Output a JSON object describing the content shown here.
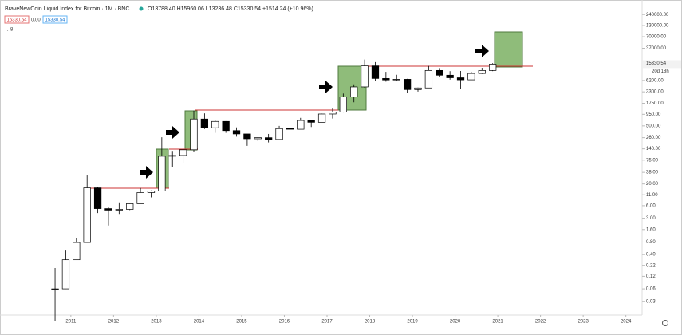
{
  "header": {
    "title": "BraveNewCoin Liquid Index for Bitcoin · 1M · BNC",
    "ohlc": "O13788.40 H15960.06 L13236.48 C15330.54 +1514.24 (+10.96%)",
    "sell": "15330.54",
    "spread": "0.00",
    "buy": "15330.54",
    "indicators": "8"
  },
  "chart_data": {
    "type": "candlestick",
    "log_scale": true,
    "grid": false,
    "up_color": "#ffffff",
    "down_color": "#000000",
    "price_label": "15330.54",
    "countdown": "20d 18h",
    "x": [
      2010.63,
      2010.88,
      2011.13,
      2011.38,
      2011.63,
      2011.88,
      2012.13,
      2012.38,
      2012.63,
      2012.88,
      2013.13,
      2013.38,
      2013.63,
      2013.88,
      2014.13,
      2014.38,
      2014.63,
      2014.88,
      2015.13,
      2015.38,
      2015.63,
      2015.88,
      2016.13,
      2016.38,
      2016.63,
      2016.88,
      2017.13,
      2017.38,
      2017.63,
      2017.88,
      2018.13,
      2018.38,
      2018.63,
      2018.88,
      2019.13,
      2019.38,
      2019.63,
      2019.88,
      2020.13,
      2020.38,
      2020.63,
      2020.88
    ],
    "open": [
      0.06,
      0.06,
      0.3,
      0.78,
      16.1,
      5.1,
      4.7,
      4.9,
      6.7,
      12.4,
      13.5,
      93,
      97,
      133,
      732,
      450,
      640,
      385,
      320,
      245,
      260,
      236,
      430,
      415,
      675,
      610,
      965,
      1080,
      2500,
      4340,
      13900,
      6930,
      6390,
      6620,
      3740,
      4100,
      10800,
      8300,
      7200,
      6430,
      9140,
      10780
    ],
    "high": [
      0.19,
      0.5,
      1.0,
      32,
      16.5,
      5.6,
      7.2,
      7.1,
      16,
      14,
      266,
      125,
      145,
      1165,
      1000,
      680,
      650,
      460,
      320,
      265,
      320,
      500,
      460,
      780,
      690,
      980,
      1350,
      3000,
      5000,
      19800,
      17200,
      10000,
      8500,
      6800,
      4200,
      13900,
      12300,
      10400,
      10500,
      10000,
      12500,
      16200
    ],
    "low": [
      0.01,
      0.06,
      0.3,
      0.78,
      4.0,
      2.0,
      3.8,
      4.7,
      6.7,
      9.5,
      13.5,
      50,
      65,
      118,
      420,
      340,
      340,
      275,
      165,
      215,
      200,
      235,
      350,
      415,
      470,
      605,
      750,
      1050,
      1850,
      4150,
      5900,
      5800,
      5900,
      3150,
      3350,
      4100,
      7700,
      6500,
      3800,
      6430,
      8900,
      10400
    ],
    "close": [
      0.06,
      0.3,
      0.78,
      16.1,
      5.1,
      4.7,
      4.9,
      6.7,
      12.4,
      13.5,
      93,
      97,
      133,
      732,
      450,
      640,
      385,
      320,
      245,
      260,
      236,
      430,
      415,
      675,
      610,
      965,
      1080,
      2500,
      4340,
      13900,
      6930,
      6390,
      6620,
      3740,
      4100,
      10800,
      8300,
      7200,
      6430,
      9140,
      10780,
      15330.54
    ],
    "xlim": [
      2009.34,
      2024.38
    ],
    "xticks": [
      2011,
      2012,
      2013,
      2014,
      2015,
      2016,
      2017,
      2018,
      2019,
      2020,
      2021,
      2022,
      2023,
      2024
    ],
    "ylim": [
      0.014,
      430000
    ],
    "yticks": [
      0.03,
      0.06,
      0.12,
      0.22,
      {
        "value": 0.4,
        "label": "0.40"
      },
      {
        "value": 0.8,
        "label": "0.80"
      },
      {
        "value": 1.6,
        "label": "1.60"
      },
      {
        "value": 3,
        "label": "3.00"
      },
      {
        "value": 6,
        "label": "6.00"
      },
      {
        "value": 11,
        "label": "11.00"
      },
      {
        "value": 20,
        "label": "20.00"
      },
      {
        "value": 38,
        "label": "38.00"
      },
      {
        "value": 75,
        "label": "75.00"
      },
      {
        "value": 140,
        "label": "140.00"
      },
      {
        "value": 260,
        "label": "260.00"
      },
      {
        "value": 500,
        "label": "500.00"
      },
      {
        "value": 950,
        "label": "950.00"
      },
      {
        "value": 1750,
        "label": "1750.00"
      },
      {
        "value": 3300,
        "label": "3300.00"
      },
      {
        "value": 6200,
        "label": "6200.00"
      },
      {
        "value": 37000,
        "label": "37000.00"
      },
      {
        "value": 70000,
        "label": "70000.00"
      },
      {
        "value": 130000,
        "label": "130000.00"
      },
      {
        "value": 240000,
        "label": "240000.00"
      }
    ]
  }
}
